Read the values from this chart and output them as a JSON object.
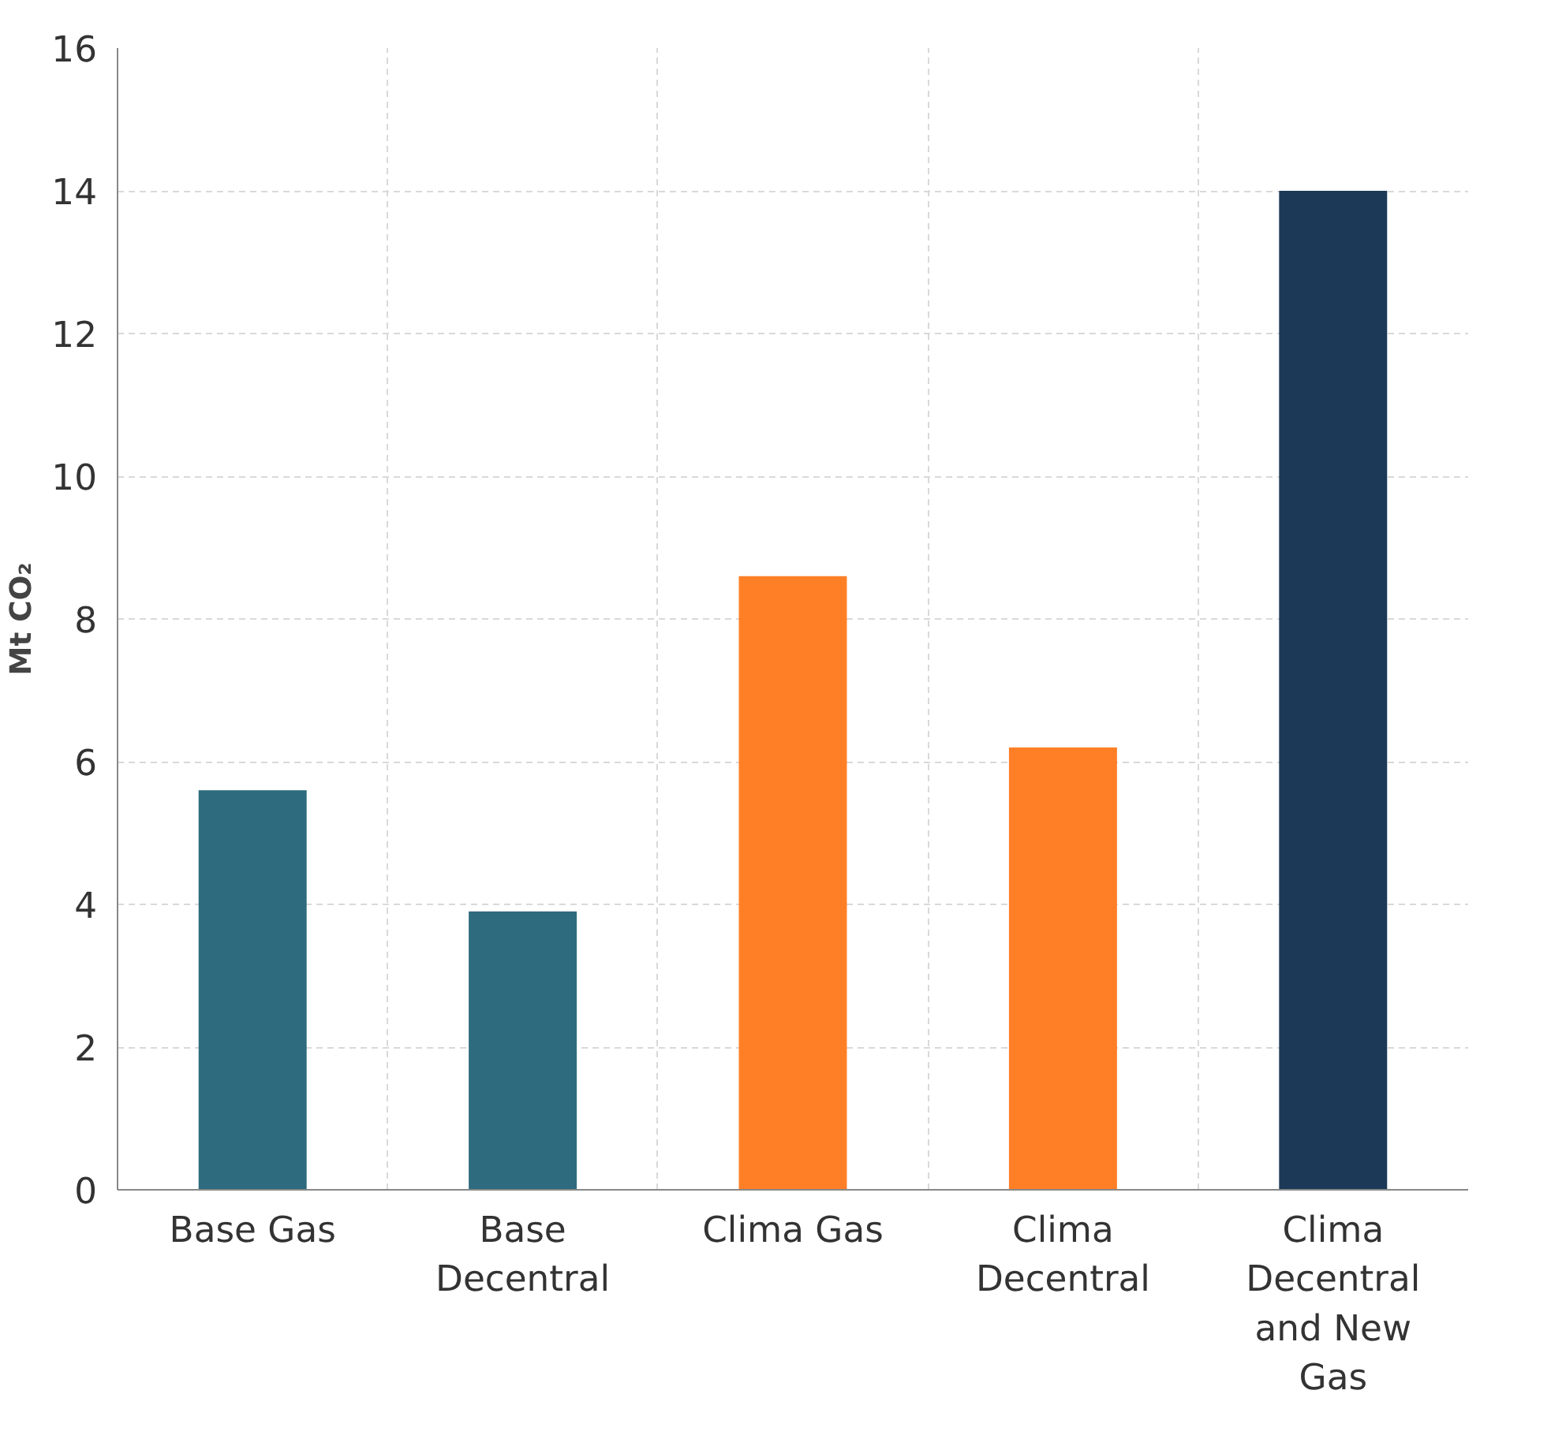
{
  "chart_data": {
    "type": "bar",
    "ylabel": "Mt CO₂",
    "categories": [
      "Base Gas",
      "Base Decentral",
      "Clima Gas",
      "Clima Decentral",
      "Clima Decentral and New Gas"
    ],
    "values": [
      5.6,
      3.9,
      8.6,
      6.2,
      14.0
    ],
    "colors": [
      "#2e6b7e",
      "#2e6b7e",
      "#ff7f27",
      "#ff7f27",
      "#1c3a57"
    ],
    "ylim": [
      0,
      16
    ],
    "yticks": [
      0,
      2,
      4,
      6,
      8,
      10,
      12,
      14,
      16
    ],
    "grid": true
  }
}
